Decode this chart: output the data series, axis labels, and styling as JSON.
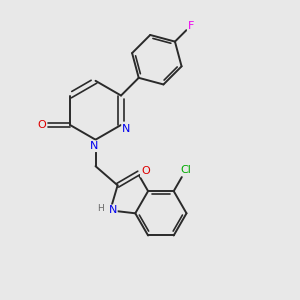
{
  "background_color": "#e8e8e8",
  "bond_color": "#2a2a2a",
  "atom_colors": {
    "N": "#0000ee",
    "O": "#dd0000",
    "F": "#ee00ee",
    "Cl": "#00aa00",
    "H": "#666666"
  },
  "figsize": [
    3.0,
    3.0
  ],
  "dpi": 100
}
